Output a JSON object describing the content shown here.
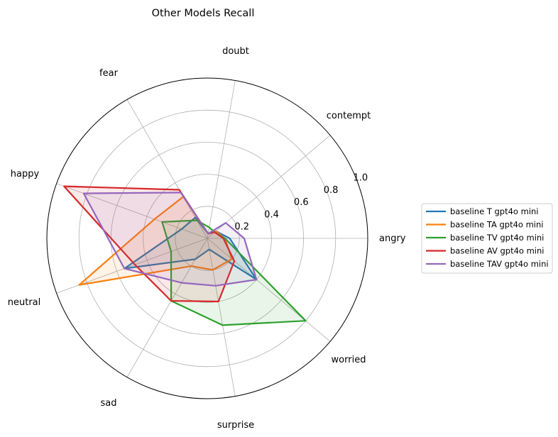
{
  "chart_data": {
    "type": "radar",
    "title": "Other Models Recall",
    "categories": [
      "angry",
      "contempt",
      "doubt",
      "fear",
      "happy",
      "neutral",
      "sad",
      "surprise",
      "worried"
    ],
    "rlim": [
      0,
      1.0
    ],
    "rticks": [
      0.2,
      0.4,
      0.6,
      0.8,
      1.0
    ],
    "rtick_labels": [
      "0.2",
      "0.4",
      "0.6",
      "0.8",
      "1.0"
    ],
    "grid": true,
    "legend_position": "right",
    "series": [
      {
        "name": "baseline T gpt4o mini",
        "color": "#1f77b4",
        "values": [
          0.14,
          0.07,
          0.03,
          0.15,
          0.17,
          0.55,
          0.15,
          0.07,
          0.4
        ]
      },
      {
        "name": "baseline TA gpt4o mini",
        "color": "#ff7f0e",
        "values": [
          0.11,
          0.07,
          0.03,
          0.3,
          0.35,
          0.85,
          0.2,
          0.2,
          0.2
        ]
      },
      {
        "name": "baseline TV gpt4o mini",
        "color": "#2ca02c",
        "values": [
          0.11,
          0.06,
          0.07,
          0.13,
          0.3,
          0.24,
          0.45,
          0.55,
          0.8
        ]
      },
      {
        "name": "baseline AV gpt4o mini",
        "color": "#d62728",
        "values": [
          0.1,
          0.06,
          0.03,
          0.35,
          0.95,
          0.48,
          0.45,
          0.4,
          0.22
        ]
      },
      {
        "name": "baseline TAV gpt4o mini",
        "color": "#9467bd",
        "values": [
          0.23,
          0.15,
          0.03,
          0.33,
          0.82,
          0.55,
          0.32,
          0.3,
          0.4
        ]
      }
    ]
  }
}
